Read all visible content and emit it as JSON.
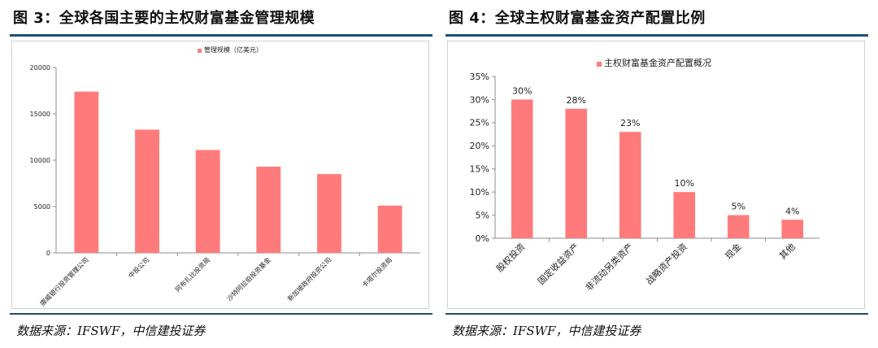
{
  "left": {
    "title": "图 3：全球各国主要的主权财富基金管理规模",
    "source": "数据来源：IFSWF，中信建投证券",
    "colors": {
      "bar": "#ff7b7b",
      "axis": "#8c8c8c",
      "rule": "#1f4e79"
    },
    "chart_data": {
      "type": "bar",
      "legend": "管理规模（亿美元）",
      "legend_position": "top-center",
      "categories": [
        "挪威银行投资管理公司",
        "中投公司",
        "阿布扎比投资局",
        "沙特阿拉伯投资基金",
        "新加坡政府投资公司",
        "卡塔尔投资局"
      ],
      "values": [
        17400,
        13300,
        11100,
        9300,
        8500,
        5100
      ],
      "yticks": [
        "0",
        "5000",
        "10000",
        "15000",
        "20000"
      ],
      "ylim": [
        0,
        20000
      ],
      "grid": false,
      "xlabel": "",
      "ylabel": ""
    }
  },
  "right": {
    "title": "图 4：全球主权财富基金资产配置比例",
    "source": "数据来源：IFSWF，中信建投证券",
    "colors": {
      "bar": "#ff7b7b",
      "axis": "#8c8c8c",
      "rule": "#1f4e79"
    },
    "chart_data": {
      "type": "bar",
      "legend": "主权财富基金资产配置概况",
      "legend_position": "top-left",
      "categories": [
        "股权投资",
        "固定收益资产",
        "非流动另类资产",
        "战略资产投资",
        "现金",
        "其他"
      ],
      "values": [
        30,
        28,
        23,
        10,
        5,
        4
      ],
      "data_labels": [
        "30%",
        "28%",
        "23%",
        "10%",
        "5%",
        "4%"
      ],
      "yticks": [
        "0%",
        "5%",
        "10%",
        "15%",
        "20%",
        "25%",
        "30%",
        "35%"
      ],
      "ylim": [
        0,
        35
      ],
      "grid": false,
      "xlabel": "",
      "ylabel": ""
    }
  }
}
